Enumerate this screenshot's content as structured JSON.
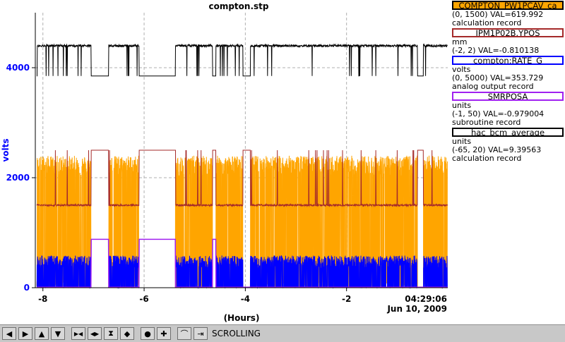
{
  "chart_data": {
    "type": "line",
    "title": "compton.stp",
    "xlabel": "(Hours)",
    "ylabel": "volts",
    "xlim": [
      -8.15,
      0
    ],
    "ylim": [
      0,
      5000
    ],
    "x_ticks": [
      "-8",
      "-6",
      "-4",
      "-2"
    ],
    "x_tick_values": [
      -8,
      -6,
      -4,
      -2
    ],
    "y_ticks": [
      "0",
      "2000",
      "4000"
    ],
    "y_tick_values": [
      0,
      2000,
      4000
    ],
    "time_label": "04:29:06",
    "date_label": "Jun 10, 2009",
    "grid": true,
    "legend_position": "right",
    "series": [
      {
        "name": "COMPTON_PW1PCAV_ca",
        "color": "#ffa500",
        "range": "(0, 1500) VAL=619.992",
        "kind": "calculation record"
      },
      {
        "name": "IPM1P02B.YPOS",
        "color": "#a52a2a",
        "range": "(-2, 2) VAL=-0.810138",
        "unit": "mm"
      },
      {
        "name": "compton:RATE_G",
        "color": "#0000ff",
        "range": "(0, 5000) VAL=353.729",
        "unit": "volts",
        "kind": "analog output record"
      },
      {
        "name": "SMRPOSA",
        "color": "#a020f0",
        "range": "(-1, 50) VAL=-0.979004",
        "unit": "units",
        "kind": "subroutine record"
      },
      {
        "name": "hac_bcm_average",
        "color": "#000000",
        "range": "(-65, 20) VAL=9.39563",
        "unit": "units",
        "kind": "calculation record"
      }
    ],
    "beam_off_intervals": [
      [
        -7.05,
        -6.7
      ],
      [
        -6.1,
        -5.38
      ],
      [
        -4.65,
        -4.58
      ],
      [
        -4.05,
        -3.9
      ],
      [
        -0.6,
        -0.48
      ]
    ],
    "black_series": {
      "on_level": 4400,
      "off_level": 3850
    },
    "orange_series": {
      "max_level": 2400,
      "off_level": 0
    },
    "brown_series": {
      "on_level": 1500,
      "off_level": 2500
    },
    "blue_series": {
      "on_level": 450,
      "off_level": 0
    },
    "purple_series": {
      "on_level": 0,
      "off_level": 880
    }
  },
  "toolbar": {
    "buttons": [
      {
        "label": "◀",
        "name": "scroll-left-icon"
      },
      {
        "label": "▶",
        "name": "scroll-right-icon"
      },
      {
        "label": "▲",
        "name": "scroll-up-icon"
      },
      {
        "label": "▼",
        "name": "scroll-down-icon"
      },
      {
        "label": "▶◀",
        "name": "zoom-in-x-icon"
      },
      {
        "label": "◀▶",
        "name": "zoom-out-x-icon"
      },
      {
        "label": "⧗",
        "name": "zoom-in-y-icon"
      },
      {
        "label": "◆",
        "name": "zoom-out-y-icon"
      },
      {
        "label": "●",
        "name": "auto-scale-icon"
      },
      {
        "label": "✚",
        "name": "add-pv-icon"
      },
      {
        "label": "⌒",
        "name": "config-icon"
      },
      {
        "label": "⇥",
        "name": "scroll-now-icon"
      }
    ],
    "status": "SCROLLING"
  }
}
